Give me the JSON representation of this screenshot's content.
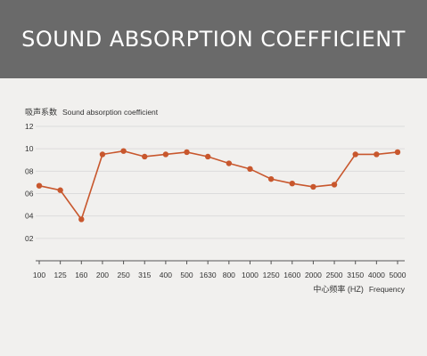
{
  "header": {
    "title": "SOUND ABSORPTION COEFFICIENT"
  },
  "chart_data": {
    "type": "line",
    "ylabel_cn": "吸声系数",
    "ylabel_en": "Sound absorption coefficient",
    "xlabel_cn": "中心频率 (HZ)",
    "xlabel_en": "Frequency",
    "categories": [
      "100",
      "125",
      "160",
      "200",
      "250",
      "315",
      "400",
      "500",
      "1630",
      "800",
      "1000",
      "1250",
      "1600",
      "2000",
      "2500",
      "3150",
      "4000",
      "5000"
    ],
    "values": [
      0.67,
      0.63,
      0.37,
      0.95,
      0.98,
      0.93,
      0.95,
      0.97,
      0.93,
      0.87,
      0.82,
      0.73,
      0.69,
      0.66,
      0.68,
      0.95,
      0.95,
      0.97
    ],
    "ylim": [
      0,
      1.2
    ],
    "yticks": [
      0.2,
      0.4,
      0.6,
      0.8,
      1.0,
      1.2
    ],
    "ytick_labels": [
      "02",
      "04",
      "06",
      "08",
      "10",
      "12"
    ],
    "grid": true,
    "colors": {
      "line": "#c8572d",
      "grid": "#dcdcdc",
      "axis": "#555555"
    }
  }
}
